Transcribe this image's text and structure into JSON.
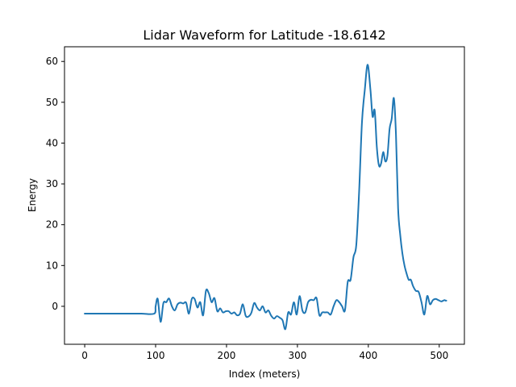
{
  "chart_data": {
    "type": "line",
    "title": "Lidar Waveform for Latitude -18.6142",
    "xlabel": "Index (meters)",
    "ylabel": "Energy",
    "xlim": [
      -28.5,
      535.5
    ],
    "ylim": [
      -9.3,
      63.6
    ],
    "xticks": [
      0,
      100,
      200,
      300,
      400,
      500
    ],
    "yticks": [
      0,
      10,
      20,
      30,
      40,
      50,
      60
    ],
    "grid": false,
    "legend": "none",
    "series": [
      {
        "color": "#1f77b4",
        "x": [
          0,
          20,
          40,
          60,
          80,
          98,
          100,
          103,
          107,
          111,
          115,
          119,
          123,
          127,
          131,
          135,
          139,
          143,
          147,
          151,
          155,
          159,
          163,
          167,
          171,
          175,
          179,
          183,
          187,
          191,
          195,
          199,
          203,
          207,
          211,
          215,
          219,
          223,
          227,
          231,
          235,
          239,
          243,
          247,
          251,
          255,
          259,
          263,
          267,
          271,
          275,
          279,
          283,
          287,
          291,
          295,
          299,
          303,
          307,
          311,
          315,
          319,
          323,
          327,
          331,
          335,
          339,
          343,
          347,
          351,
          355,
          359,
          363,
          367,
          371,
          375,
          379,
          383,
          387,
          391,
          395,
          399,
          403,
          406,
          409,
          412,
          415,
          418,
          421,
          424,
          427,
          430,
          433,
          436,
          439,
          442,
          445,
          448,
          451,
          454,
          457,
          460,
          463,
          467,
          471,
          475,
          479,
          483,
          487,
          491,
          495,
          499,
          503,
          507,
          509,
          510
        ],
        "values": [
          -1.8,
          -1.8,
          -1.8,
          -1.8,
          -1.8,
          -1.8,
          0.0,
          1.8,
          -3.8,
          0.8,
          1.0,
          1.9,
          0.0,
          -1.0,
          0.5,
          0.9,
          0.7,
          0.9,
          -1.8,
          1.8,
          1.8,
          -0.3,
          1.0,
          -2.2,
          3.8,
          3.2,
          1.0,
          2.0,
          -1.2,
          -0.5,
          -1.5,
          -1.2,
          -1.2,
          -1.8,
          -1.5,
          -2.2,
          -1.8,
          0.5,
          -2.3,
          -2.5,
          -1.6,
          0.8,
          -0.3,
          -1.0,
          0.0,
          -1.5,
          -1.0,
          -2.3,
          -3.0,
          -2.4,
          -2.8,
          -3.4,
          -5.6,
          -1.5,
          -2.0,
          1.0,
          -2.0,
          2.5,
          -1.0,
          -1.5,
          1.0,
          1.6,
          1.5,
          2.0,
          -2.2,
          -1.5,
          -1.5,
          -1.5,
          -2.0,
          0.0,
          1.5,
          1.0,
          0.0,
          -1.0,
          6.0,
          6.5,
          12.0,
          15.0,
          28.0,
          45.0,
          53.0,
          59.2,
          53.0,
          46.5,
          48.0,
          39.0,
          34.5,
          35.0,
          37.8,
          35.5,
          37.0,
          43.5,
          46.0,
          51.0,
          42.0,
          24.0,
          17.5,
          13.0,
          10.0,
          8.0,
          6.5,
          6.5,
          5.0,
          3.8,
          3.5,
          1.0,
          -2.0,
          2.5,
          0.5,
          1.5,
          1.8,
          1.5,
          1.2,
          1.5,
          1.4,
          1.4
        ]
      }
    ]
  }
}
